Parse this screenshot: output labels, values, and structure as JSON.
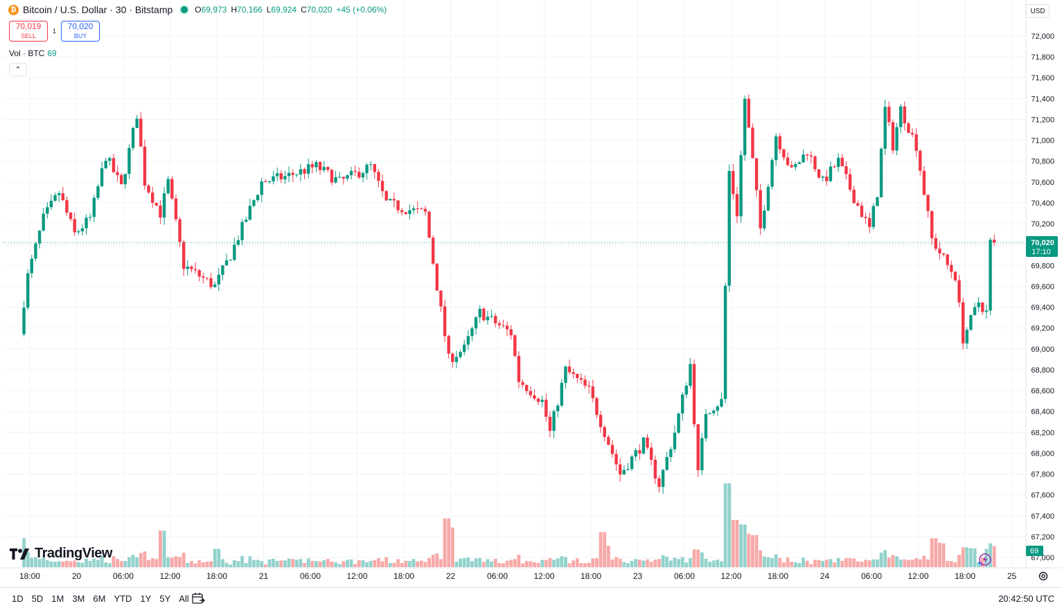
{
  "header": {
    "symbol_title": "Bitcoin / U.S. Dollar · 30 · Bitstamp",
    "coin_glyph": "₿",
    "ohlc": {
      "open_label": "O",
      "open": "69,973",
      "high_label": "H",
      "high": "70,166",
      "low_label": "L",
      "low": "69,924",
      "close_label": "C",
      "close": "70,020",
      "change": "+45 (+0.06%)"
    }
  },
  "trade": {
    "sell_price": "70,019",
    "sell_label": "SELL",
    "spread": "1",
    "buy_price": "70,020",
    "buy_label": "BUY"
  },
  "volume_legend": {
    "label": "Vol · BTC",
    "value": "69"
  },
  "collapse_glyph": "⌃",
  "currency": "USD",
  "logo_text": "TradingView",
  "bottom": {
    "ranges": [
      "1D",
      "5D",
      "1M",
      "3M",
      "6M",
      "YTD",
      "1Y",
      "5Y",
      "All"
    ],
    "clock": "20:42:50 UTC"
  },
  "icons": {
    "coin": "bitcoin-icon",
    "market": "market-open-icon",
    "calendar": "calendar-icon",
    "settings": "gear-icon",
    "flash": "lightning-icon"
  },
  "colors": {
    "up": "#089981",
    "down": "#f23645",
    "vol_up": "#92d2cc",
    "vol_down": "#f7a9a7",
    "accent": "#2962ff"
  },
  "chart_data": {
    "type": "candlestick",
    "y_ticks": [
      67000,
      67200,
      67400,
      67600,
      67800,
      68000,
      68200,
      68400,
      68600,
      68800,
      69000,
      69200,
      69400,
      69600,
      69800,
      70000,
      70200,
      70400,
      70600,
      70800,
      71000,
      71200,
      71400,
      71600,
      71800,
      72000
    ],
    "x_ticks": [
      "18:00",
      "20",
      "06:00",
      "12:00",
      "18:00",
      "21",
      "06:00",
      "12:00",
      "18:00",
      "22",
      "06:00",
      "12:00",
      "18:00",
      "23",
      "06:00",
      "12:00",
      "18:00",
      "24",
      "06:00",
      "12:00",
      "18:00",
      "25"
    ],
    "last_price": "70,020",
    "last_countdown": "17:10",
    "last_volume": "69",
    "keypoints": [
      {
        "t": "2024-03-19T17:00Z",
        "p": 69200
      },
      {
        "t": "2024-03-19T18:00Z",
        "p": 69700
      },
      {
        "t": "2024-03-19T20:00Z",
        "p": 70250
      },
      {
        "t": "2024-03-19T22:00Z",
        "p": 70500
      },
      {
        "t": "2024-03-20T00:00Z",
        "p": 70100
      },
      {
        "t": "2024-03-20T02:00Z",
        "p": 70250
      },
      {
        "t": "2024-03-20T04:00Z",
        "p": 70850
      },
      {
        "t": "2024-03-20T06:00Z",
        "p": 70550
      },
      {
        "t": "2024-03-20T08:00Z",
        "p": 71250
      },
      {
        "t": "2024-03-20T09:00Z",
        "p": 70600
      },
      {
        "t": "2024-03-20T11:00Z",
        "p": 70300
      },
      {
        "t": "2024-03-20T12:00Z",
        "p": 70600
      },
      {
        "t": "2024-03-20T14:00Z",
        "p": 69800
      },
      {
        "t": "2024-03-20T16:00Z",
        "p": 69700
      },
      {
        "t": "2024-03-20T18:00Z",
        "p": 69600
      },
      {
        "t": "2024-03-20T20:00Z",
        "p": 69900
      },
      {
        "t": "2024-03-21T00:00Z",
        "p": 70600
      },
      {
        "t": "2024-03-21T03:00Z",
        "p": 70650
      },
      {
        "t": "2024-03-21T07:00Z",
        "p": 70750
      },
      {
        "t": "2024-03-21T10:00Z",
        "p": 70600
      },
      {
        "t": "2024-03-21T14:00Z",
        "p": 70750
      },
      {
        "t": "2024-03-21T16:00Z",
        "p": 70400
      },
      {
        "t": "2024-03-21T18:00Z",
        "p": 70350
      },
      {
        "t": "2024-03-21T21:00Z",
        "p": 70300
      },
      {
        "t": "2024-03-22T00:00Z",
        "p": 68900
      },
      {
        "t": "2024-03-22T02:00Z",
        "p": 69000
      },
      {
        "t": "2024-03-22T04:00Z",
        "p": 69350
      },
      {
        "t": "2024-03-22T08:00Z",
        "p": 69150
      },
      {
        "t": "2024-03-22T09:00Z",
        "p": 68700
      },
      {
        "t": "2024-03-22T12:00Z",
        "p": 68500
      },
      {
        "t": "2024-03-22T13:00Z",
        "p": 68200
      },
      {
        "t": "2024-03-22T15:00Z",
        "p": 68800
      },
      {
        "t": "2024-03-22T18:00Z",
        "p": 68600
      },
      {
        "t": "2024-03-22T20:00Z",
        "p": 68200
      },
      {
        "t": "2024-03-22T22:00Z",
        "p": 67800
      },
      {
        "t": "2024-03-23T01:00Z",
        "p": 68100
      },
      {
        "t": "2024-03-23T03:00Z",
        "p": 67700
      },
      {
        "t": "2024-03-23T05:00Z",
        "p": 68200
      },
      {
        "t": "2024-03-23T07:00Z",
        "p": 68850
      },
      {
        "t": "2024-03-23T08:00Z",
        "p": 67800
      },
      {
        "t": "2024-03-23T09:00Z",
        "p": 68400
      },
      {
        "t": "2024-03-23T11:00Z",
        "p": 68500
      },
      {
        "t": "2024-03-23T12:00Z",
        "p": 70700
      },
      {
        "t": "2024-03-23T13:00Z",
        "p": 70300
      },
      {
        "t": "2024-03-23T14:00Z",
        "p": 71400
      },
      {
        "t": "2024-03-23T15:00Z",
        "p": 70800
      },
      {
        "t": "2024-03-23T16:00Z",
        "p": 70150
      },
      {
        "t": "2024-03-23T18:00Z",
        "p": 71050
      },
      {
        "t": "2024-03-23T20:00Z",
        "p": 70700
      },
      {
        "t": "2024-03-23T22:00Z",
        "p": 70900
      },
      {
        "t": "2024-03-24T00:00Z",
        "p": 70600
      },
      {
        "t": "2024-03-24T02:00Z",
        "p": 70800
      },
      {
        "t": "2024-03-24T04:00Z",
        "p": 70450
      },
      {
        "t": "2024-03-24T06:00Z",
        "p": 70150
      },
      {
        "t": "2024-03-24T07:00Z",
        "p": 70500
      },
      {
        "t": "2024-03-24T08:00Z",
        "p": 71300
      },
      {
        "t": "2024-03-24T09:00Z",
        "p": 70950
      },
      {
        "t": "2024-03-24T10:00Z",
        "p": 71300
      },
      {
        "t": "2024-03-24T12:00Z",
        "p": 70950
      },
      {
        "t": "2024-03-24T14:00Z",
        "p": 70050
      },
      {
        "t": "2024-03-24T16:00Z",
        "p": 69800
      },
      {
        "t": "2024-03-24T17:00Z",
        "p": 69700
      },
      {
        "t": "2024-03-24T18:00Z",
        "p": 69100
      },
      {
        "t": "2024-03-24T20:00Z",
        "p": 69450
      },
      {
        "t": "2024-03-24T21:00Z",
        "p": 69350
      },
      {
        "t": "2024-03-24T21:30Z",
        "p": 70020
      }
    ],
    "volume_spikes": [
      {
        "t": "2024-03-19T16:00Z",
        "v": 165
      },
      {
        "t": "2024-03-19T17:00Z",
        "v": 95
      },
      {
        "t": "2024-03-20T11:00Z",
        "v": 120
      },
      {
        "t": "2024-03-20T18:00Z",
        "v": 60
      },
      {
        "t": "2024-03-21T23:30Z",
        "v": 160
      },
      {
        "t": "2024-03-22T00:00Z",
        "v": 130
      },
      {
        "t": "2024-03-22T19:30Z",
        "v": 115
      },
      {
        "t": "2024-03-22T20:00Z",
        "v": 70
      },
      {
        "t": "2024-03-23T11:30Z",
        "v": 275
      },
      {
        "t": "2024-03-23T12:00Z",
        "v": 110
      },
      {
        "t": "2024-03-23T12:30Z",
        "v": 155
      },
      {
        "t": "2024-03-23T13:30Z",
        "v": 140
      },
      {
        "t": "2024-03-23T14:00Z",
        "v": 110
      },
      {
        "t": "2024-03-23T15:00Z",
        "v": 105
      },
      {
        "t": "2024-03-24T14:00Z",
        "v": 95
      },
      {
        "t": "2024-03-24T14:30Z",
        "v": 80
      },
      {
        "t": "2024-03-24T15:00Z",
        "v": 78
      },
      {
        "t": "2024-03-24T18:00Z",
        "v": 65
      },
      {
        "t": "2024-03-24T19:00Z",
        "v": 62
      },
      {
        "t": "2024-03-24T21:00Z",
        "v": 60
      }
    ]
  }
}
